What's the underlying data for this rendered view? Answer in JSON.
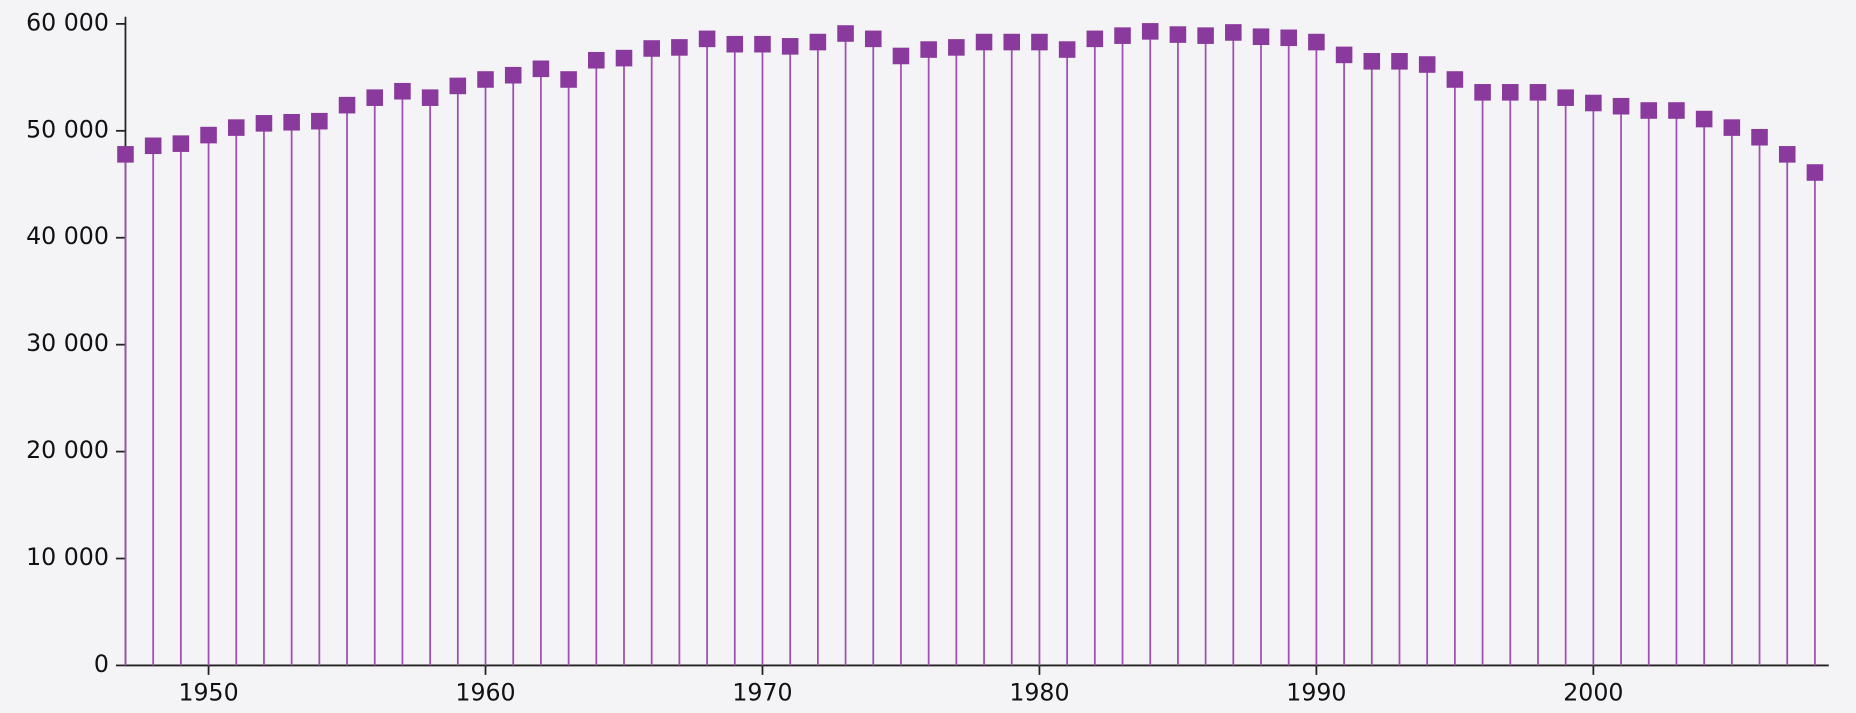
{
  "chart_data": {
    "type": "stem",
    "x": [
      1947,
      1948,
      1949,
      1950,
      1951,
      1952,
      1953,
      1954,
      1955,
      1956,
      1957,
      1958,
      1959,
      1960,
      1961,
      1962,
      1963,
      1964,
      1965,
      1966,
      1967,
      1968,
      1969,
      1970,
      1971,
      1972,
      1973,
      1974,
      1975,
      1976,
      1977,
      1978,
      1979,
      1980,
      1981,
      1982,
      1983,
      1984,
      1985,
      1986,
      1987,
      1988,
      1989,
      1990,
      1991,
      1992,
      1993,
      1994,
      1995,
      1996,
      1997,
      1998,
      1999,
      2000,
      2001,
      2002,
      2003,
      2004,
      2005,
      2006,
      2007,
      2008
    ],
    "values": [
      47800,
      48600,
      48800,
      49600,
      50300,
      50700,
      50800,
      50900,
      52400,
      53100,
      53700,
      53100,
      54200,
      54800,
      55200,
      55800,
      54800,
      56600,
      56800,
      57700,
      57800,
      58600,
      58100,
      58100,
      57900,
      58300,
      59100,
      58600,
      57000,
      57600,
      57800,
      58300,
      58300,
      58300,
      57600,
      58600,
      58900,
      59300,
      59000,
      58900,
      59200,
      58800,
      58700,
      58300,
      57100,
      56500,
      56500,
      56200,
      54800,
      53600,
      53600,
      53600,
      53100,
      52600,
      52300,
      51900,
      51900,
      51100,
      50300,
      49400,
      47800,
      46100
    ],
    "marker_color": "#8a3a9c",
    "stem_color": "#a050b4",
    "xlim": [
      1947,
      2008.5
    ],
    "xticks": [
      1950,
      1960,
      1970,
      1980,
      1990,
      2000
    ],
    "ylim": [
      0,
      60000
    ],
    "yticks": [
      {
        "value": 0,
        "label": "0"
      },
      {
        "value": 10000,
        "label": "10 000"
      },
      {
        "value": 20000,
        "label": "20 000"
      },
      {
        "value": 30000,
        "label": "30 000"
      },
      {
        "value": 40000,
        "label": "40 000"
      },
      {
        "value": 50000,
        "label": "50 000"
      },
      {
        "value": 60000,
        "label": "60 000"
      }
    ]
  }
}
